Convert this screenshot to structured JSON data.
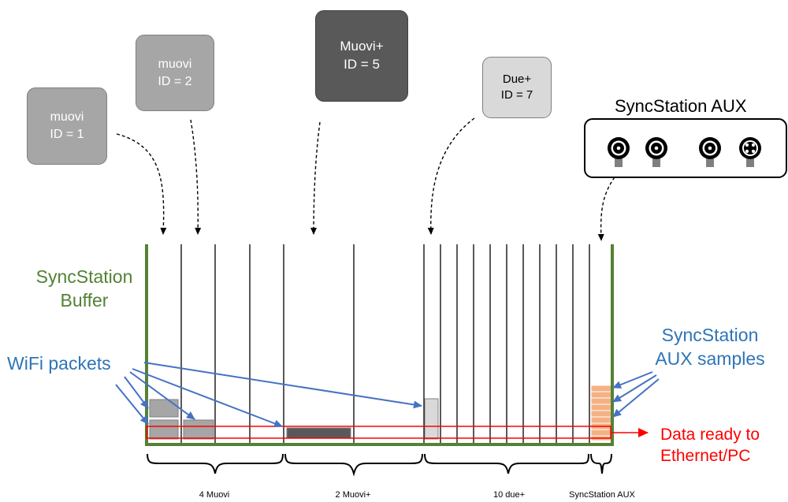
{
  "devices": [
    {
      "name": "muovi",
      "id_text": "ID = 1"
    },
    {
      "name": "muovi",
      "id_text": "ID = 2"
    },
    {
      "name": "Muovi+",
      "id_text": "ID = 5"
    },
    {
      "name": "Due+",
      "id_text": "ID = 7"
    }
  ],
  "aux": {
    "title": "SyncStation AUX"
  },
  "buffer": {
    "line1": "SyncStation",
    "line2": "Buffer"
  },
  "wifi": {
    "label": "WiFi packets"
  },
  "aux_samples": {
    "line1": "SyncStation",
    "line2": "AUX samples"
  },
  "output": {
    "line1": "Data ready to",
    "line2": "Ethernet/PC"
  },
  "groups": [
    "4 Muovi",
    "2 Muovi+",
    "10 due+",
    "SyncStation AUX"
  ],
  "colors": {
    "muovi_box": "#a6a6a6",
    "muovi_plus_box": "#595959",
    "due_plus_box": "#d9d9d9",
    "buffer_border": "#548235",
    "wifi_arrow": "#4472c4",
    "aux_sample": "#f4b183",
    "output_arrow": "#ff0000"
  }
}
